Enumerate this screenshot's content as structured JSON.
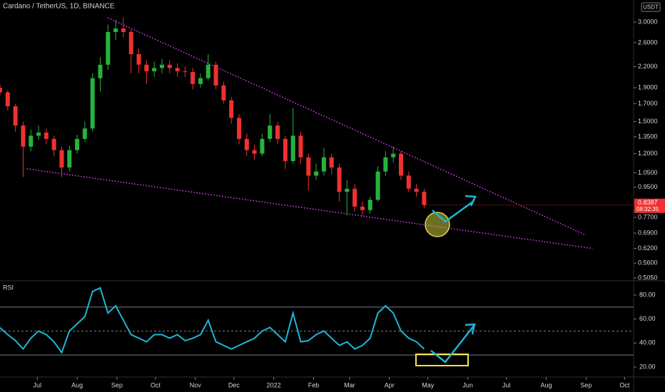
{
  "chart_data": [
    {
      "type": "candlestick",
      "title": "Cardano / TetherUS, 1D, BINANCE",
      "currency": "USDT",
      "countdown": "08:32:35",
      "x": [
        0,
        6,
        12,
        18,
        24,
        30,
        36,
        42,
        48,
        54,
        60,
        66,
        72,
        78,
        84,
        90,
        96,
        102,
        108,
        114,
        120,
        126,
        132,
        138,
        144,
        150,
        156,
        162,
        168,
        174,
        180,
        186,
        192,
        198,
        204,
        210,
        216,
        222,
        228,
        234,
        240,
        246,
        252,
        258,
        264,
        270,
        276,
        282,
        288,
        294,
        300,
        306,
        312,
        318,
        324,
        330
      ],
      "open": [
        1.9,
        1.84,
        1.67,
        1.46,
        1.26,
        1.36,
        1.39,
        1.33,
        1.23,
        1.09,
        1.23,
        1.33,
        1.43,
        2.03,
        2.23,
        2.8,
        2.87,
        2.8,
        2.4,
        2.23,
        2.13,
        2.18,
        2.23,
        2.18,
        2.13,
        2.12,
        1.95,
        2.03,
        2.23,
        1.93,
        1.74,
        1.54,
        1.33,
        1.23,
        1.2,
        1.33,
        1.46,
        1.33,
        1.14,
        1.36,
        1.17,
        1.03,
        1.06,
        1.17,
        1.09,
        0.92,
        0.94,
        0.83,
        0.81,
        0.87,
        1.06,
        1.17,
        1.2,
        1.03,
        0.94,
        0.92
      ],
      "high": [
        1.95,
        1.87,
        1.7,
        1.5,
        1.42,
        1.46,
        1.43,
        1.36,
        1.26,
        1.27,
        1.37,
        1.5,
        2.1,
        2.35,
        2.95,
        3.05,
        3.1,
        2.85,
        2.5,
        2.3,
        2.28,
        2.32,
        2.3,
        2.25,
        2.2,
        2.18,
        2.1,
        2.4,
        2.28,
        1.98,
        1.78,
        1.58,
        1.38,
        1.28,
        1.38,
        1.58,
        1.5,
        1.36,
        1.65,
        1.4,
        1.2,
        1.12,
        1.25,
        1.2,
        1.12,
        1.0,
        0.97,
        0.86,
        0.89,
        1.1,
        1.22,
        1.26,
        1.22,
        1.06,
        0.97,
        0.94
      ],
      "low": [
        1.8,
        1.62,
        1.4,
        1.02,
        1.22,
        1.32,
        1.28,
        1.18,
        1.02,
        1.06,
        1.2,
        1.3,
        1.4,
        1.85,
        2.15,
        2.65,
        2.7,
        2.1,
        2.1,
        1.95,
        2.05,
        2.1,
        2.1,
        2.05,
        2.05,
        1.88,
        1.9,
        2.0,
        1.88,
        1.7,
        1.48,
        1.28,
        1.18,
        1.15,
        1.18,
        1.3,
        1.28,
        1.08,
        1.12,
        1.12,
        0.93,
        1.0,
        1.03,
        1.04,
        0.86,
        0.78,
        0.8,
        0.78,
        0.79,
        0.86,
        1.03,
        1.13,
        1.0,
        0.92,
        0.89,
        0.82
      ],
      "close": [
        1.84,
        1.67,
        1.46,
        1.26,
        1.36,
        1.39,
        1.33,
        1.23,
        1.09,
        1.23,
        1.33,
        1.43,
        2.03,
        2.23,
        2.8,
        2.87,
        2.8,
        2.4,
        2.23,
        2.13,
        2.18,
        2.23,
        2.18,
        2.13,
        2.12,
        1.95,
        2.03,
        2.23,
        1.93,
        1.74,
        1.54,
        1.33,
        1.23,
        1.2,
        1.33,
        1.46,
        1.33,
        1.14,
        1.36,
        1.17,
        1.03,
        1.06,
        1.17,
        1.09,
        0.92,
        0.94,
        0.83,
        0.81,
        0.87,
        1.06,
        1.17,
        1.2,
        1.03,
        0.94,
        0.92,
        0.8387
      ],
      "up_color": "#26b33c",
      "down_color": "#ef3131",
      "log_scale": true,
      "xlim": [
        0,
        493
      ],
      "ylim": [
        0.495,
        3.5
      ],
      "xticks": [
        {
          "value": 29,
          "label": "Jul"
        },
        {
          "value": 60,
          "label": "Aug"
        },
        {
          "value": 91,
          "label": "Sep"
        },
        {
          "value": 121,
          "label": "Oct"
        },
        {
          "value": 152,
          "label": "Nov"
        },
        {
          "value": 182,
          "label": "Dec"
        },
        {
          "value": 213,
          "label": "2022"
        },
        {
          "value": 244,
          "label": "Feb"
        },
        {
          "value": 272,
          "label": "Mar"
        },
        {
          "value": 303,
          "label": "Apr"
        },
        {
          "value": 333,
          "label": "May"
        },
        {
          "value": 364,
          "label": "Jun"
        },
        {
          "value": 394,
          "label": "Jul"
        },
        {
          "value": 425,
          "label": "Aug"
        },
        {
          "value": 456,
          "label": "Sep"
        },
        {
          "value": 486,
          "label": "Oct"
        }
      ],
      "yticks": [
        {
          "value": 3,
          "label": "3.0000"
        },
        {
          "value": 2.6,
          "label": "2.6000"
        },
        {
          "value": 2.2,
          "label": "2.2000"
        },
        {
          "value": 1.9,
          "label": "1.9000"
        },
        {
          "value": 1.7,
          "label": "1.7000"
        },
        {
          "value": 1.5,
          "label": "1.5000"
        },
        {
          "value": 1.35,
          "label": "1.3500"
        },
        {
          "value": 1.2,
          "label": "1.2000"
        },
        {
          "value": 1.05,
          "label": "1.0500"
        },
        {
          "value": 0.95,
          "label": "0.9500"
        },
        {
          "value": 0.77,
          "label": "0.7700"
        },
        {
          "value": 0.69,
          "label": "0.6900"
        },
        {
          "value": 0.62,
          "label": "0.6200"
        },
        {
          "value": 0.56,
          "label": "0.5600"
        },
        {
          "value": 0.505,
          "label": "0.5050"
        }
      ],
      "trendline_color": "#e040fb",
      "trendlines": [
        {
          "x": [
            84,
            456
          ],
          "values": [
            3.09,
            0.68
          ]
        },
        {
          "x": [
            21,
            461
          ],
          "values": [
            1.08,
            0.62
          ]
        }
      ]
    },
    {
      "type": "line",
      "title": "RSI",
      "color": "#1fb6d6",
      "x": [
        0,
        6,
        12,
        18,
        24,
        30,
        36,
        42,
        48,
        54,
        60,
        66,
        72,
        78,
        84,
        90,
        96,
        102,
        108,
        114,
        120,
        126,
        132,
        138,
        144,
        150,
        156,
        162,
        168,
        174,
        180,
        186,
        192,
        198,
        204,
        210,
        216,
        222,
        228,
        234,
        240,
        246,
        252,
        258,
        264,
        270,
        276,
        282,
        288,
        294,
        300,
        306,
        312,
        318,
        324,
        330
      ],
      "values": [
        52.8,
        47,
        42,
        35,
        44,
        50,
        47,
        41,
        32,
        50,
        56,
        62,
        83,
        86,
        65,
        71,
        59,
        47,
        44,
        41,
        47,
        47,
        44,
        47,
        42,
        44,
        47,
        59,
        41,
        38,
        35,
        38,
        41,
        44,
        50,
        53,
        47,
        41,
        65,
        41,
        42,
        47,
        50,
        44,
        38,
        41,
        35,
        38,
        44,
        65,
        71,
        65,
        50,
        44,
        41,
        35
      ],
      "xlim": [
        0,
        493
      ],
      "ylim": [
        12.2,
        91.3
      ],
      "bands": [
        30,
        50,
        70
      ],
      "yticks": [
        {
          "value": 80,
          "label": "80.00"
        },
        {
          "value": 60,
          "label": "60.00"
        },
        {
          "value": 40,
          "label": "40.00"
        },
        {
          "value": 20,
          "label": "20.00"
        }
      ]
    }
  ]
}
